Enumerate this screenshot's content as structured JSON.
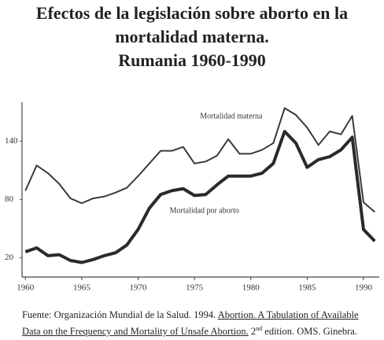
{
  "chart_data": {
    "type": "line",
    "title": "Efectos de la legislación sobre aborto en la mortalidad materna.",
    "subtitle": "Rumania 1960-1990",
    "x": [
      1960,
      1961,
      1962,
      1963,
      1964,
      1965,
      1966,
      1967,
      1968,
      1969,
      1970,
      1971,
      1972,
      1973,
      1974,
      1975,
      1976,
      1977,
      1978,
      1979,
      1980,
      1981,
      1982,
      1983,
      1984,
      1985,
      1986,
      1987,
      1988,
      1989,
      1990,
      1991
    ],
    "series": [
      {
        "name": "Mortalidad materna",
        "color": "#3a3a3a",
        "values": [
          89,
          115,
          107,
          96,
          81,
          76,
          81,
          83,
          87,
          92,
          104,
          117,
          130,
          130,
          134,
          117,
          119,
          125,
          142,
          127,
          127,
          131,
          138,
          174,
          167,
          154,
          136,
          150,
          147,
          166,
          77,
          67
        ]
      },
      {
        "name": "Mortalidad por aborto",
        "color": "#2a2a2a",
        "values": [
          26,
          30,
          22,
          23,
          17,
          15,
          18,
          22,
          25,
          33,
          49,
          71,
          85,
          89,
          91,
          84,
          85,
          95,
          104,
          104,
          104,
          107,
          117,
          150,
          138,
          113,
          121,
          124,
          131,
          144,
          49,
          37
        ]
      }
    ],
    "xlim": [
      1959.7,
      1991.4
    ],
    "xticks": [
      1960,
      1965,
      1970,
      1975,
      1980,
      1985,
      1990
    ],
    "ylim": [
      0,
      180
    ],
    "yticks": [
      20,
      80,
      140
    ],
    "grid": false
  },
  "source": {
    "text1": "Fuente: Organización Mundial de la Salud. 1994.",
    "reference": "Abortion. A Tabulation of Available Data on the Frequency and Mortality of Unsafe Abortion.",
    "edition": "2",
    "edition_suffix": "nd",
    "text2": "edition. OMS. Ginebra."
  }
}
